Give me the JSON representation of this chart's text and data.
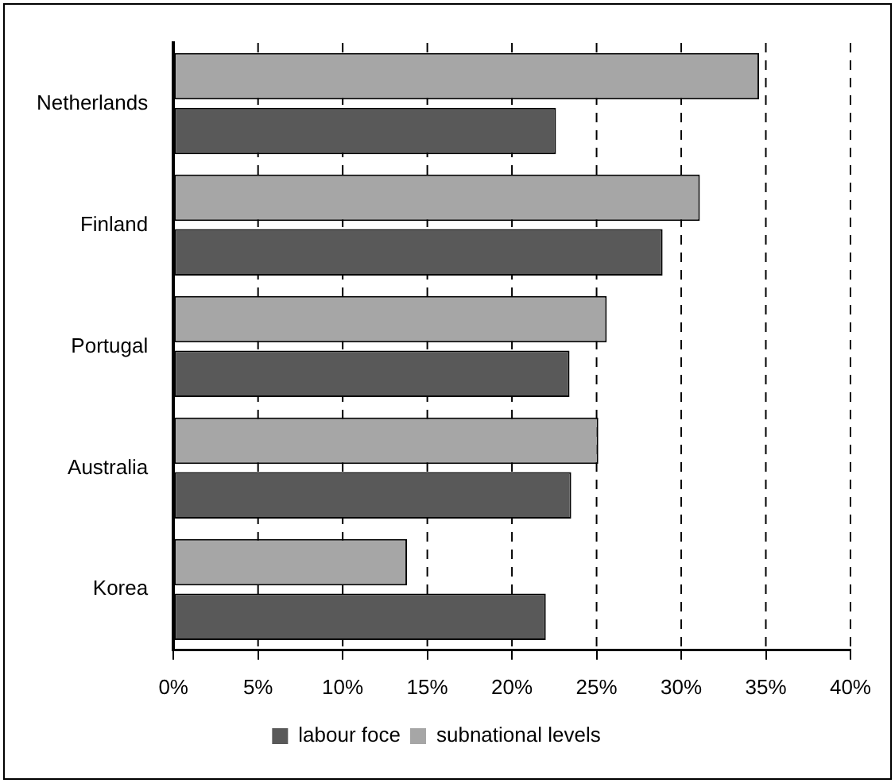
{
  "chart_data": {
    "type": "bar",
    "orientation": "horizontal",
    "categories": [
      "Netherlands",
      "Finland",
      "Portugal",
      "Australia",
      "Korea"
    ],
    "series": [
      {
        "name": "subnational levels",
        "color": "#a6a6a6",
        "values": [
          34.6,
          31.1,
          25.6,
          25.1,
          13.8
        ]
      },
      {
        "name": "labour foce",
        "color": "#595959",
        "values": [
          22.6,
          28.9,
          23.4,
          23.5,
          22.0
        ]
      }
    ],
    "xlim": [
      0,
      40
    ],
    "xticks": [
      {
        "value": 0,
        "label": "0%"
      },
      {
        "value": 5,
        "label": "5%"
      },
      {
        "value": 10,
        "label": "10%"
      },
      {
        "value": 15,
        "label": "15%"
      },
      {
        "value": 20,
        "label": "20%"
      },
      {
        "value": 25,
        "label": "25%"
      },
      {
        "value": 30,
        "label": "30%"
      },
      {
        "value": 35,
        "label": "35%"
      },
      {
        "value": 40,
        "label": "40%"
      }
    ],
    "grid": "x",
    "line_style": "dashed",
    "legend": "bottom"
  }
}
